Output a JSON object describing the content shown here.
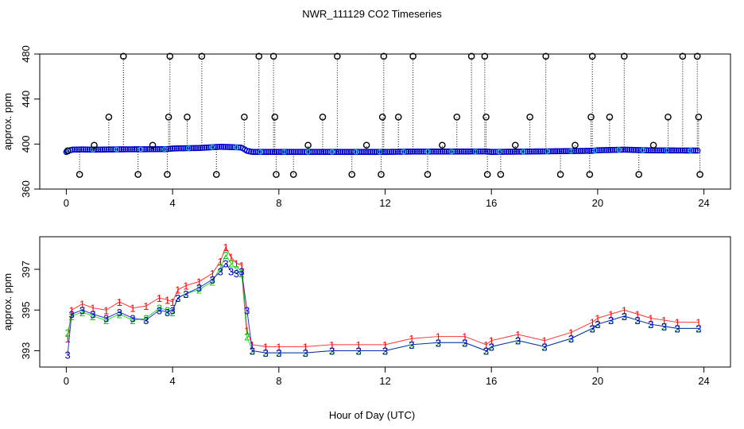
{
  "title": "NWR_111129  CO2 Timeseries",
  "xlabel": "Hour of Day (UTC)",
  "chart_data": [
    {
      "type": "scatter",
      "title": "",
      "xlabel": "",
      "ylabel": "approx. ppm",
      "xlim": [
        -1,
        25
      ],
      "ylim": [
        360,
        480
      ],
      "xticks": [
        0,
        4,
        8,
        12,
        16,
        20,
        24
      ],
      "yticks": [
        360,
        400,
        440,
        480
      ],
      "grid": false,
      "series": [
        {
          "marker": "open-circle",
          "color": "#000000",
          "x": [
            0.05,
            0.5,
            1.05,
            1.6,
            2.15,
            2.7,
            3.25,
            3.8,
            3.85,
            3.9,
            4.55,
            5.1,
            5.65,
            6.7,
            7.25,
            7.8,
            7.85,
            7.9,
            8.55,
            9.1,
            9.65,
            10.2,
            10.75,
            11.3,
            11.85,
            11.9,
            11.95,
            12.5,
            13.05,
            13.6,
            14.15,
            14.7,
            15.25,
            15.75,
            15.8,
            15.85,
            16.35,
            16.9,
            17.45,
            18.05,
            18.6,
            19.15,
            19.7,
            19.75,
            19.8,
            20.45,
            21.0,
            21.55,
            22.1,
            22.65,
            23.2,
            23.75,
            23.8,
            23.85
          ],
          "y": [
            394,
            373,
            399,
            424,
            478,
            373,
            399,
            373,
            424,
            478,
            424,
            478,
            373,
            424,
            478,
            478,
            424,
            373,
            373,
            399,
            424,
            478,
            373,
            399,
            373,
            424,
            478,
            424,
            478,
            373,
            399,
            424,
            478,
            478,
            424,
            373,
            373,
            399,
            424,
            478,
            373,
            399,
            373,
            424,
            478,
            424,
            478,
            373,
            399,
            424,
            478,
            478,
            424,
            373
          ]
        }
      ],
      "band_series": [
        {
          "x": [
            0,
            0.2,
            0.6,
            1.0,
            2.0,
            3.0,
            3.8,
            4.0,
            4.2,
            5.0,
            5.8,
            6.2,
            6.6,
            6.8,
            7.0,
            8.0,
            10.0,
            12.0,
            13.0,
            15.8,
            16.0,
            18.0,
            19.8,
            20.0,
            21.0,
            22.0,
            23.8
          ],
          "y": [
            393,
            395,
            395.2,
            395,
            395.3,
            395.4,
            395.5,
            396,
            396.2,
            396.5,
            397.6,
            397.3,
            396.9,
            394,
            393,
            393,
            393,
            393,
            393.3,
            393.4,
            393,
            393.5,
            394,
            394.5,
            395,
            394.4,
            394.2
          ]
        }
      ]
    },
    {
      "type": "scatter",
      "title": "",
      "xlabel": "",
      "ylabel": "approx. ppm",
      "xlim": [
        -1,
        25
      ],
      "ylim": [
        392.2,
        398.6
      ],
      "xticks": [
        0,
        4,
        8,
        12,
        16,
        20,
        24
      ],
      "yticks": [
        393,
        395,
        397
      ],
      "grid": false,
      "series": [
        {
          "marker": "1",
          "color": "#ff0000",
          "x": [
            0.05,
            0.2,
            0.6,
            1.0,
            1.5,
            2.0,
            2.5,
            3.0,
            3.5,
            3.8,
            4.0,
            4.2,
            4.5,
            5.0,
            5.5,
            5.8,
            6.0,
            6.2,
            6.4,
            6.6,
            6.8,
            7.0,
            7.5,
            8.0,
            9.0,
            10.0,
            11.0,
            12.0,
            13.0,
            14.0,
            15.0,
            15.8,
            16.0,
            17.0,
            18.0,
            19.0,
            19.8,
            20.0,
            20.5,
            21.0,
            21.5,
            22.0,
            22.5,
            23.0,
            23.8
          ],
          "y": [
            393.6,
            395.0,
            395.3,
            395.1,
            395.0,
            395.4,
            395.1,
            395.2,
            395.6,
            395.5,
            395.4,
            396.0,
            396.2,
            396.4,
            396.8,
            397.4,
            398.1,
            397.6,
            397.3,
            397.2,
            394.0,
            393.3,
            393.2,
            393.2,
            393.2,
            393.3,
            393.3,
            393.3,
            393.6,
            393.7,
            393.7,
            393.3,
            393.5,
            393.8,
            393.5,
            393.9,
            394.4,
            394.6,
            394.8,
            395.0,
            394.8,
            394.6,
            394.5,
            394.4,
            394.4
          ]
        },
        {
          "marker": "2",
          "color": "#00cc00",
          "x": [
            0.05,
            0.2,
            0.6,
            1.0,
            1.5,
            2.0,
            2.5,
            3.0,
            3.5,
            3.8,
            4.0,
            4.2,
            4.5,
            5.0,
            5.5,
            5.8,
            6.0,
            6.2,
            6.4,
            6.6,
            6.8,
            7.0,
            7.5,
            8.0,
            9.0,
            10.0,
            11.0,
            12.0,
            13.0,
            14.0,
            15.0,
            15.8,
            16.0,
            17.0,
            18.0,
            19.0,
            19.8,
            20.0,
            20.5,
            21.0,
            21.5,
            22.0,
            22.5,
            23.0,
            23.8
          ],
          "y": [
            393.9,
            394.7,
            394.9,
            394.7,
            394.5,
            394.8,
            394.5,
            394.6,
            395.1,
            395.0,
            394.9,
            395.6,
            395.8,
            396.0,
            396.4,
            397.1,
            397.7,
            397.3,
            397.0,
            396.8,
            393.7,
            393.0,
            392.9,
            392.9,
            392.9,
            393.0,
            393.0,
            393.0,
            393.3,
            393.4,
            393.4,
            393.0,
            393.2,
            393.5,
            393.2,
            393.6,
            394.1,
            394.3,
            394.5,
            394.7,
            394.5,
            394.3,
            394.2,
            394.1,
            394.1
          ]
        },
        {
          "marker": "3",
          "color": "#0000cc",
          "x": [
            0.05,
            0.2,
            0.6,
            1.0,
            1.5,
            2.0,
            2.5,
            3.0,
            3.5,
            3.8,
            4.0,
            4.2,
            4.5,
            5.0,
            5.5,
            5.8,
            6.0,
            6.2,
            6.4,
            6.6,
            6.8,
            7.0,
            7.5,
            8.0,
            9.0,
            10.0,
            11.0,
            12.0,
            13.0,
            14.0,
            15.0,
            15.8,
            16.0,
            17.0,
            18.0,
            19.0,
            19.8,
            20.0,
            20.5,
            21.0,
            21.5,
            22.0,
            22.5,
            23.0,
            23.8
          ],
          "y": [
            392.8,
            394.8,
            395.0,
            394.8,
            394.6,
            394.9,
            394.6,
            394.5,
            395.0,
            394.9,
            395.0,
            395.6,
            395.8,
            396.1,
            396.5,
            396.9,
            397.3,
            396.9,
            396.8,
            396.9,
            395.0,
            393.0,
            392.9,
            392.9,
            392.9,
            393.0,
            393.0,
            393.0,
            393.3,
            393.4,
            393.4,
            393.0,
            393.2,
            393.5,
            393.2,
            393.6,
            394.1,
            394.3,
            394.5,
            394.7,
            394.5,
            394.3,
            394.2,
            394.1,
            394.1
          ]
        }
      ]
    }
  ]
}
